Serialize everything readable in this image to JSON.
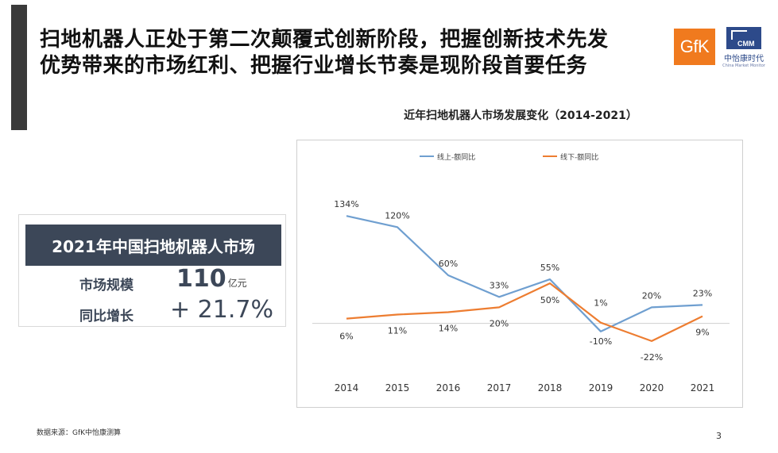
{
  "slide": {
    "title_line1": "扫地机器人正处于第二次颠覆式创新阶段，把握创新技术先发",
    "title_line2": "优势带来的市场红利、把握行业增长节奏是现阶段首要任务",
    "source": "数据来源：GfK中怡康测算",
    "page_number": "3"
  },
  "logos": {
    "gfk": "GfK",
    "cmm_mark": "CMM",
    "cmm_cn": "中怡康时代",
    "cmm_en": "China Market Monitor"
  },
  "stat_card": {
    "heading": "2021年中国扫地机器人市场",
    "rows": [
      {
        "label": "市场规模",
        "value": "110",
        "unit": "亿元"
      },
      {
        "label": "同比增长",
        "value": "+ 21.7%",
        "unit": ""
      }
    ]
  },
  "colors": {
    "online": "#6f9fd0",
    "offline": "#ed7d31",
    "axis": "#d0d0d0",
    "card_head": "#3c4758"
  },
  "chart_data": {
    "type": "line",
    "title": "近年扫地机器人市场发展变化（2014-2021）",
    "categories": [
      "2014",
      "2015",
      "2016",
      "2017",
      "2018",
      "2019",
      "2020",
      "2021"
    ],
    "series": [
      {
        "name": "线上-额同比",
        "values": [
          134,
          120,
          60,
          33,
          55,
          -10,
          20,
          23
        ],
        "labels": [
          "134%",
          "120%",
          "60%",
          "33%",
          "55%",
          "-10%",
          "20%",
          "23%"
        ]
      },
      {
        "name": "线下-额同比",
        "values": [
          6,
          11,
          14,
          20,
          50,
          1,
          -22,
          9
        ],
        "labels": [
          "6%",
          "11%",
          "14%",
          "20%",
          "50%",
          "1%",
          "-22%",
          "9%"
        ]
      }
    ],
    "ylim": [
      -30,
      150
    ],
    "grid": false,
    "legend": "top"
  }
}
